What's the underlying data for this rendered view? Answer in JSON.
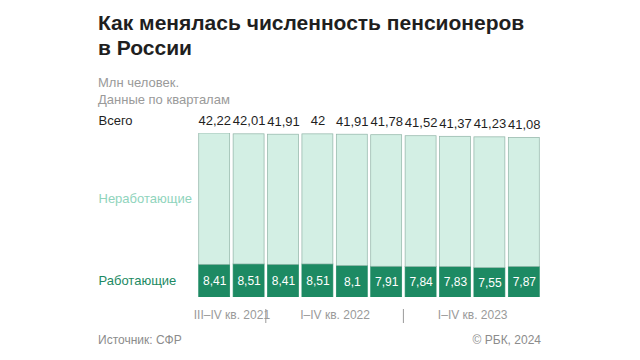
{
  "chart_data": {
    "type": "bar",
    "title": "Как менялась численность пенсионеров в России",
    "subtitle": "Млн человек.\nДанные по кварталам",
    "categories": [
      null,
      null,
      null,
      null,
      null,
      null,
      null,
      null,
      null,
      null
    ],
    "x_groups": [
      {
        "label": "III–IV кв. 2021",
        "from": 0,
        "to": 1
      },
      {
        "label": "I–IV кв. 2022",
        "from": 2,
        "to": 5
      },
      {
        "label": "I–IV кв. 2023",
        "from": 6,
        "to": 9
      }
    ],
    "series": [
      {
        "name": "Неработающие",
        "color": "#d3efe4",
        "values": [
          33.81,
          33.5,
          33.5,
          33.49,
          33.81,
          33.87,
          33.68,
          33.54,
          33.68,
          33.21
        ]
      },
      {
        "name": "Работающие",
        "color": "#1d8a63",
        "values": [
          8.41,
          8.51,
          8.41,
          8.51,
          8.1,
          7.91,
          7.84,
          7.83,
          7.55,
          7.87
        ],
        "value_labels": [
          "8,41",
          "8,51",
          "8,41",
          "8,51",
          "8,1",
          "7,91",
          "7,84",
          "7,83",
          "7,55",
          "7,87"
        ]
      }
    ],
    "totals": {
      "name": "Всего",
      "values": [
        42.22,
        42.01,
        41.91,
        42,
        41.91,
        41.78,
        41.52,
        41.37,
        41.23,
        41.08
      ],
      "value_labels": [
        "42,22",
        "42,01",
        "41,91",
        "42",
        "41,91",
        "41,78",
        "41,52",
        "41,37",
        "41,23",
        "41,08"
      ]
    },
    "stacked": true,
    "data_labels": true,
    "tick_labels": false,
    "ylim": [
      0,
      42.22
    ],
    "yticks": [],
    "source": "Источник: СФР",
    "credit": "© РБК, 2024"
  }
}
